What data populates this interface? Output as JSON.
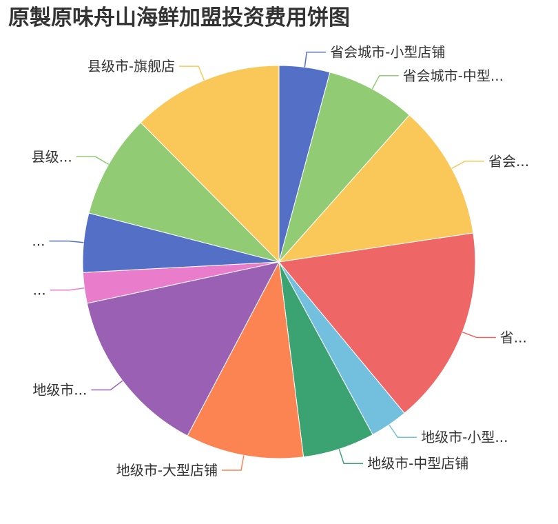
{
  "chart_data": {
    "type": "pie",
    "title": "原製原味舟山海鲜加盟投资费用饼图",
    "slices": [
      {
        "label": "省会城市-小型店铺",
        "value": 4.3,
        "color": "#5470c6"
      },
      {
        "label": "省会城市-中型...",
        "value": 7.6,
        "color": "#91cc75"
      },
      {
        "label": "省会...",
        "value": 11.4,
        "color": "#fac858"
      },
      {
        "label": "省...",
        "value": 16.8,
        "color": "#ee6666"
      },
      {
        "label": "地级市-小型...",
        "value": 3.2,
        "color": "#73c0de"
      },
      {
        "label": "地级市-中型店铺",
        "value": 6.1,
        "color": "#3ba272"
      },
      {
        "label": "地级市-大型店铺",
        "value": 10.0,
        "color": "#fc8452"
      },
      {
        "label": "地级市...",
        "value": 14.3,
        "color": "#9a60b4"
      },
      {
        "label": "...",
        "value": 2.6,
        "color": "#ea7ccc"
      },
      {
        "label": "...",
        "value": 5.0,
        "color": "#5470c6"
      },
      {
        "label": "县级...",
        "value": 8.8,
        "color": "#91cc75"
      },
      {
        "label": "县级市-旗舰店",
        "value": 12.8,
        "color": "#fac858"
      }
    ]
  }
}
